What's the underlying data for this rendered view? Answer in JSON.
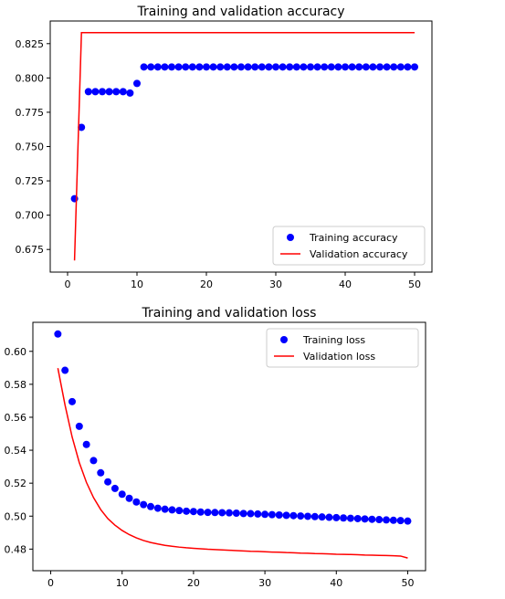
{
  "chart_data": [
    {
      "type": "scatter+line",
      "title": "Training and validation accuracy",
      "xlabel": "",
      "ylabel": "",
      "xlim": [
        -2.5,
        52.5
      ],
      "ylim": [
        0.6585,
        0.8415
      ],
      "xticks": [
        0,
        10,
        20,
        30,
        40,
        50
      ],
      "xtick_labels": [
        "0",
        "10",
        "20",
        "30",
        "40",
        "50"
      ],
      "yticks": [
        0.675,
        0.7,
        0.725,
        0.75,
        0.775,
        0.8,
        0.825
      ],
      "ytick_labels": [
        "0.675",
        "0.700",
        "0.725",
        "0.750",
        "0.775",
        "0.800",
        "0.825"
      ],
      "grid": false,
      "legend_position": "lower-right",
      "series": [
        {
          "name": "Training accuracy",
          "style": "points",
          "color": "#0000ff",
          "x": [
            1,
            2,
            3,
            4,
            5,
            6,
            7,
            8,
            9,
            10,
            11,
            12,
            13,
            14,
            15,
            16,
            17,
            18,
            19,
            20,
            21,
            22,
            23,
            24,
            25,
            26,
            27,
            28,
            29,
            30,
            31,
            32,
            33,
            34,
            35,
            36,
            37,
            38,
            39,
            40,
            41,
            42,
            43,
            44,
            45,
            46,
            47,
            48,
            49,
            50
          ],
          "y": [
            0.712,
            0.764,
            0.79,
            0.79,
            0.79,
            0.79,
            0.79,
            0.79,
            0.789,
            0.796,
            0.808,
            0.808,
            0.808,
            0.808,
            0.808,
            0.808,
            0.808,
            0.808,
            0.808,
            0.808,
            0.808,
            0.808,
            0.808,
            0.808,
            0.808,
            0.808,
            0.808,
            0.808,
            0.808,
            0.808,
            0.808,
            0.808,
            0.808,
            0.808,
            0.808,
            0.808,
            0.808,
            0.808,
            0.808,
            0.808,
            0.808,
            0.808,
            0.808,
            0.808,
            0.808,
            0.808,
            0.808,
            0.808,
            0.808,
            0.808
          ]
        },
        {
          "name": "Validation accuracy",
          "style": "line",
          "color": "#ff0000",
          "x": [
            1,
            2,
            3,
            4,
            5,
            6,
            7,
            8,
            9,
            10,
            11,
            12,
            13,
            14,
            15,
            16,
            17,
            18,
            19,
            20,
            21,
            22,
            23,
            24,
            25,
            26,
            27,
            28,
            29,
            30,
            31,
            32,
            33,
            34,
            35,
            36,
            37,
            38,
            39,
            40,
            41,
            42,
            43,
            44,
            45,
            46,
            47,
            48,
            49,
            50
          ],
          "y": [
            0.667,
            0.833,
            0.833,
            0.833,
            0.833,
            0.833,
            0.833,
            0.833,
            0.833,
            0.833,
            0.833,
            0.833,
            0.833,
            0.833,
            0.833,
            0.833,
            0.833,
            0.833,
            0.833,
            0.833,
            0.833,
            0.833,
            0.833,
            0.833,
            0.833,
            0.833,
            0.833,
            0.833,
            0.833,
            0.833,
            0.833,
            0.833,
            0.833,
            0.833,
            0.833,
            0.833,
            0.833,
            0.833,
            0.833,
            0.833,
            0.833,
            0.833,
            0.833,
            0.833,
            0.833,
            0.833,
            0.833,
            0.833,
            0.833,
            0.833
          ]
        }
      ]
    },
    {
      "type": "scatter+line",
      "title": "Training and validation loss",
      "xlabel": "",
      "ylabel": "",
      "xlim": [
        -2.5,
        52.5
      ],
      "ylim": [
        0.4669,
        0.6176
      ],
      "xticks": [
        0,
        10,
        20,
        30,
        40,
        50
      ],
      "xtick_labels": [
        "0",
        "10",
        "20",
        "30",
        "40",
        "50"
      ],
      "yticks": [
        0.48,
        0.5,
        0.52,
        0.54,
        0.56,
        0.58,
        0.6
      ],
      "ytick_labels": [
        "0.48",
        "0.50",
        "0.52",
        "0.54",
        "0.56",
        "0.58",
        "0.60"
      ],
      "grid": false,
      "legend_position": "upper-right",
      "series": [
        {
          "name": "Training loss",
          "style": "points",
          "color": "#0000ff",
          "x": [
            1,
            2,
            3,
            4,
            5,
            6,
            7,
            8,
            9,
            10,
            11,
            12,
            13,
            14,
            15,
            16,
            17,
            18,
            19,
            20,
            21,
            22,
            23,
            24,
            25,
            26,
            27,
            28,
            29,
            30,
            31,
            32,
            33,
            34,
            35,
            36,
            37,
            38,
            39,
            40,
            41,
            42,
            43,
            44,
            45,
            46,
            47,
            48,
            49,
            50
          ],
          "y": [
            0.6105,
            0.5885,
            0.5695,
            0.5545,
            0.5435,
            0.5337,
            0.5263,
            0.5208,
            0.5168,
            0.5133,
            0.5108,
            0.5086,
            0.507,
            0.5058,
            0.5048,
            0.5042,
            0.5038,
            0.5034,
            0.503,
            0.5028,
            0.5025,
            0.5023,
            0.5022,
            0.5021,
            0.502,
            0.5018,
            0.5016,
            0.5015,
            0.5013,
            0.5011,
            0.5009,
            0.5007,
            0.5005,
            0.5003,
            0.5001,
            0.4999,
            0.4997,
            0.4995,
            0.4993,
            0.4991,
            0.4989,
            0.4987,
            0.4985,
            0.4983,
            0.4981,
            0.4979,
            0.4977,
            0.4975,
            0.4973,
            0.497
          ]
        },
        {
          "name": "Validation loss",
          "style": "line",
          "color": "#ff0000",
          "x": [
            1,
            2,
            3,
            4,
            5,
            6,
            7,
            8,
            9,
            10,
            11,
            12,
            13,
            14,
            15,
            16,
            17,
            18,
            19,
            20,
            21,
            22,
            23,
            24,
            25,
            26,
            27,
            28,
            29,
            30,
            31,
            32,
            33,
            34,
            35,
            36,
            37,
            38,
            39,
            40,
            41,
            42,
            43,
            44,
            45,
            46,
            47,
            48,
            49,
            50
          ],
          "y": [
            0.5898,
            0.5675,
            0.548,
            0.5325,
            0.5205,
            0.5112,
            0.504,
            0.4985,
            0.4945,
            0.4913,
            0.4888,
            0.4868,
            0.4852,
            0.484,
            0.4831,
            0.4823,
            0.4817,
            0.4812,
            0.4808,
            0.4805,
            0.4802,
            0.4799,
            0.4797,
            0.4795,
            0.4793,
            0.4791,
            0.4789,
            0.4787,
            0.4786,
            0.4784,
            0.4782,
            0.4781,
            0.4779,
            0.4778,
            0.4776,
            0.4775,
            0.4773,
            0.4772,
            0.4771,
            0.4769,
            0.4768,
            0.4767,
            0.4766,
            0.4764,
            0.4763,
            0.4762,
            0.4761,
            0.476,
            0.4758,
            0.4746
          ]
        }
      ]
    }
  ]
}
